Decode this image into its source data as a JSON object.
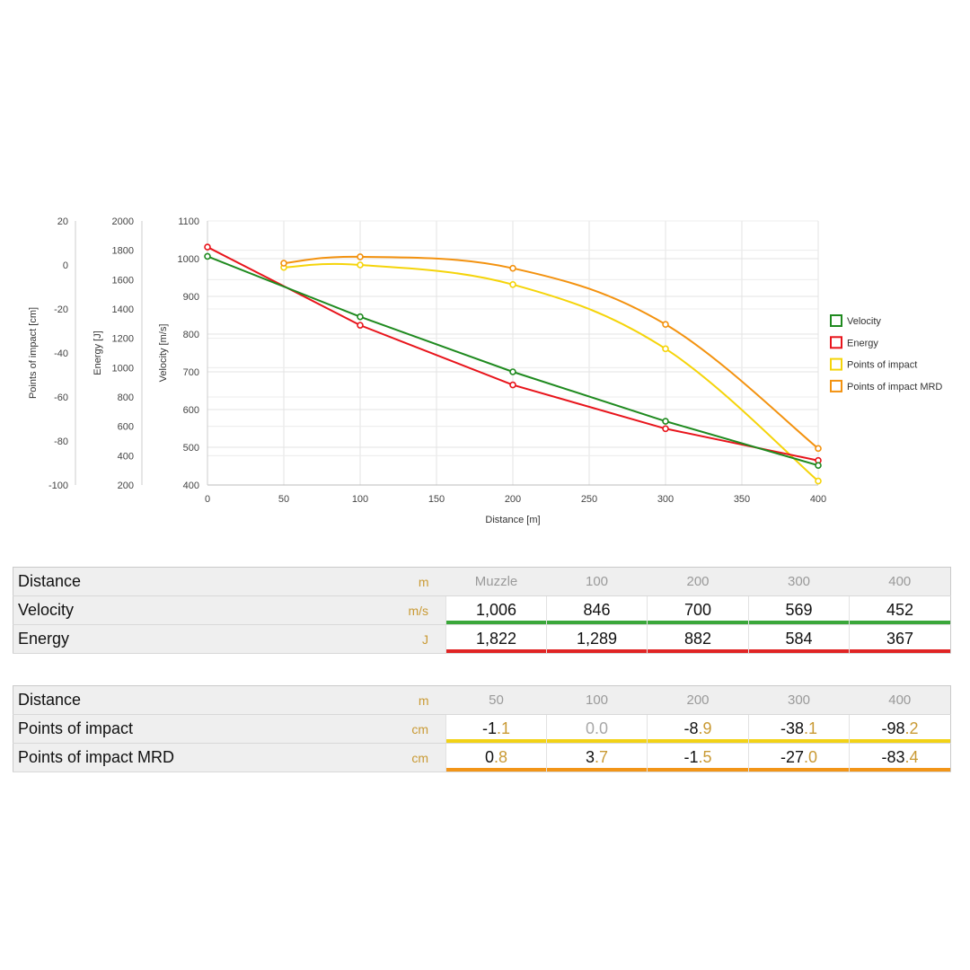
{
  "chart_data": {
    "type": "line",
    "xlabel": "Distance [m]",
    "xlim": [
      0,
      400
    ],
    "xticks": [
      0,
      50,
      100,
      150,
      200,
      250,
      300,
      350,
      400
    ],
    "grid": true,
    "legend_position": "right",
    "axes": [
      {
        "id": "poi",
        "label": "Points of impact [cm]",
        "ylim": [
          -100,
          20
        ],
        "ticks": [
          20,
          0,
          -20,
          -40,
          -60,
          -80,
          -100
        ]
      },
      {
        "id": "energy",
        "label": "Energy [J]",
        "ylim": [
          200,
          2000
        ],
        "ticks": [
          2000,
          1800,
          1600,
          1400,
          1200,
          1000,
          800,
          600,
          400,
          200
        ]
      },
      {
        "id": "velocity",
        "label": "Velocity [m/s]",
        "ylim": [
          400,
          1100
        ],
        "ticks": [
          1100,
          1000,
          900,
          800,
          700,
          600,
          500,
          400
        ]
      }
    ],
    "series": [
      {
        "name": "Velocity",
        "axis": "velocity",
        "color": "#1f8a1f",
        "x": [
          0,
          100,
          200,
          300,
          400
        ],
        "y": [
          1006,
          846,
          700,
          569,
          452
        ]
      },
      {
        "name": "Energy",
        "axis": "energy",
        "color": "#e8141b",
        "x": [
          0,
          100,
          200,
          300,
          400
        ],
        "y": [
          1822,
          1289,
          882,
          584,
          367
        ]
      },
      {
        "name": "Points of impact",
        "axis": "poi",
        "color": "#f5d40a",
        "x": [
          50,
          100,
          200,
          300,
          400
        ],
        "y": [
          -1.1,
          0.0,
          -8.9,
          -38.1,
          -98.2
        ]
      },
      {
        "name": "Points of impact MRD",
        "axis": "poi",
        "color": "#f3920f",
        "x": [
          50,
          100,
          200,
          300,
          400
        ],
        "y": [
          0.8,
          3.7,
          -1.5,
          -27.0,
          -83.4
        ]
      }
    ]
  },
  "table1": {
    "header": {
      "label": "Distance",
      "unit": "m",
      "cols": [
        "Muzzle",
        "100",
        "200",
        "300",
        "400"
      ]
    },
    "rows": [
      {
        "label": "Velocity",
        "unit": "m/s",
        "values": [
          "1,006",
          "846",
          "700",
          "569",
          "452"
        ],
        "underline": "#3aa73a"
      },
      {
        "label": "Energy",
        "unit": "J",
        "values": [
          "1,822",
          "1,289",
          "882",
          "584",
          "367"
        ],
        "underline": "#e02424"
      }
    ]
  },
  "table2": {
    "header": {
      "label": "Distance",
      "unit": "m",
      "cols": [
        "50",
        "100",
        "200",
        "300",
        "400"
      ]
    },
    "rows": [
      {
        "label": "Points of impact",
        "unit": "cm",
        "values": [
          "-1.1",
          "0.0",
          "-8.9",
          "-38.1",
          "-98.2"
        ],
        "underline": "#f2d216"
      },
      {
        "label": "Points of impact MRD",
        "unit": "cm",
        "values": [
          "0.8",
          "3.7",
          "-1.5",
          "-27.0",
          "-83.4"
        ],
        "underline": "#f29518"
      }
    ]
  }
}
